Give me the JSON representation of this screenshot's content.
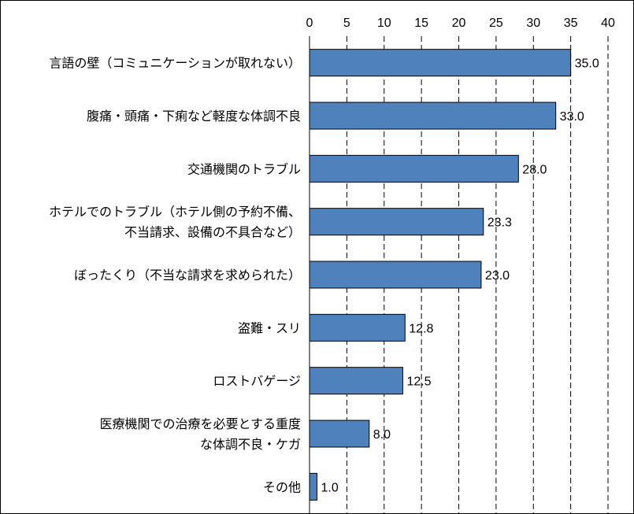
{
  "chart_data": {
    "type": "bar",
    "orientation": "horizontal",
    "categories": [
      [
        "言語の壁（コミュニケーションが取れない）"
      ],
      [
        "腹痛・頭痛・下痢など軽度な体調不良"
      ],
      [
        "交通機関のトラブル"
      ],
      [
        "ホテルでのトラブル（ホテル側の予約不備、",
        "不当請求、設備の不具合など）"
      ],
      [
        "ぼったくり（不当な請求を求められた）"
      ],
      [
        "盗難・スリ"
      ],
      [
        "ロストバゲージ"
      ],
      [
        "医療機関での治療を必要とする重度",
        "な体調不良・ケガ"
      ],
      [
        "その他"
      ]
    ],
    "values": [
      35.0,
      33.0,
      28.0,
      23.3,
      23.0,
      12.8,
      12.5,
      8.0,
      1.0
    ],
    "value_labels": [
      "35.0",
      "33.0",
      "28.0",
      "23.3",
      "23.0",
      "12.8",
      "12.5",
      "8.0",
      "1.0"
    ],
    "xlim": [
      0,
      40
    ],
    "xticks": [
      "0",
      "5",
      "10",
      "15",
      "20",
      "25",
      "30",
      "35",
      "40"
    ],
    "x_axis_position": "top",
    "grid": "vertical dashed",
    "legend": "none",
    "colors": {
      "bar": "#4f81bd",
      "bar_edge": "#000000",
      "grid": "#000000"
    }
  }
}
